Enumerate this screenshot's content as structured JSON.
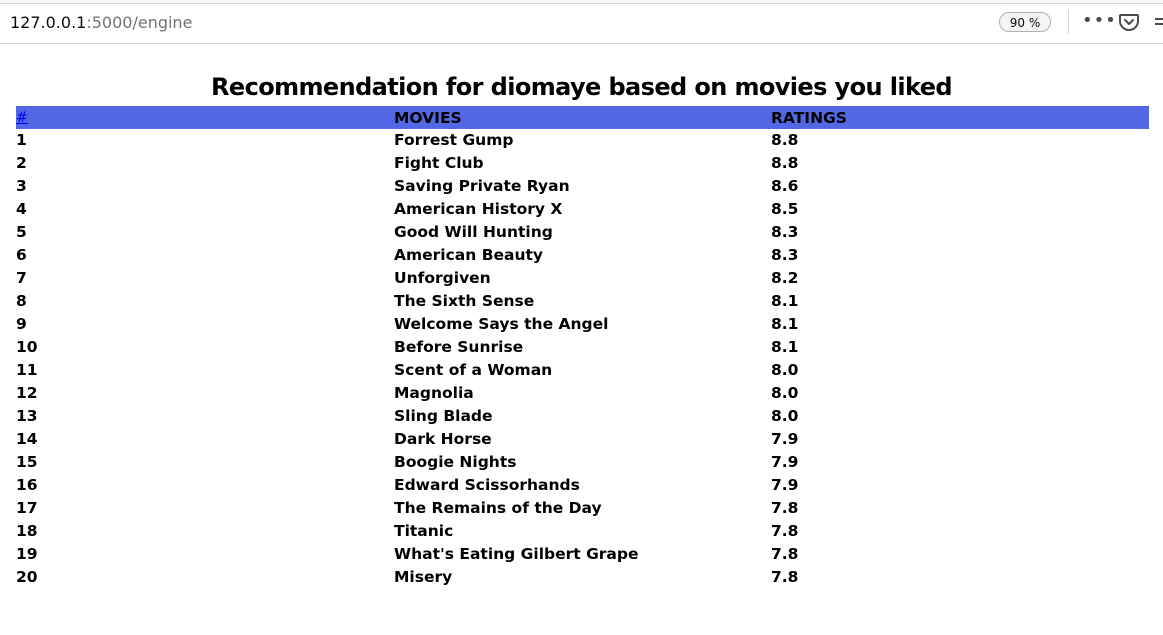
{
  "browser": {
    "url_host": "127.0.0.1",
    "url_rest": ":5000/engine",
    "zoom": "90 %",
    "icons": [
      "more-icon",
      "pocket-icon"
    ]
  },
  "page": {
    "title": "Recommendation for diomaye based on movies you liked"
  },
  "table": {
    "headers": [
      "#",
      "MOVIES",
      "RATINGS"
    ],
    "rows": [
      {
        "rank": "1",
        "movie": "Forrest Gump",
        "rating": "8.8"
      },
      {
        "rank": "2",
        "movie": "Fight Club",
        "rating": "8.8"
      },
      {
        "rank": "3",
        "movie": "Saving Private Ryan",
        "rating": "8.6"
      },
      {
        "rank": "4",
        "movie": "American History X",
        "rating": "8.5"
      },
      {
        "rank": "5",
        "movie": "Good Will Hunting",
        "rating": "8.3"
      },
      {
        "rank": "6",
        "movie": "American Beauty",
        "rating": "8.3"
      },
      {
        "rank": "7",
        "movie": "Unforgiven",
        "rating": "8.2"
      },
      {
        "rank": "8",
        "movie": "The Sixth Sense",
        "rating": "8.1"
      },
      {
        "rank": "9",
        "movie": "Welcome Says the Angel",
        "rating": "8.1"
      },
      {
        "rank": "10",
        "movie": "Before Sunrise",
        "rating": "8.1"
      },
      {
        "rank": "11",
        "movie": "Scent of a Woman",
        "rating": "8.0"
      },
      {
        "rank": "12",
        "movie": "Magnolia",
        "rating": "8.0"
      },
      {
        "rank": "13",
        "movie": "Sling Blade",
        "rating": "8.0"
      },
      {
        "rank": "14",
        "movie": "Dark Horse",
        "rating": "7.9"
      },
      {
        "rank": "15",
        "movie": "Boogie Nights",
        "rating": "7.9"
      },
      {
        "rank": "16",
        "movie": "Edward Scissorhands",
        "rating": "7.9"
      },
      {
        "rank": "17",
        "movie": "The Remains of the Day",
        "rating": "7.8"
      },
      {
        "rank": "18",
        "movie": "Titanic",
        "rating": "7.8"
      },
      {
        "rank": "19",
        "movie": "What's Eating Gilbert Grape",
        "rating": "7.8"
      },
      {
        "rank": "20",
        "movie": "Misery",
        "rating": "7.8"
      }
    ]
  },
  "colors": {
    "header_bg": "#5167e3",
    "link": "#0000ee"
  }
}
